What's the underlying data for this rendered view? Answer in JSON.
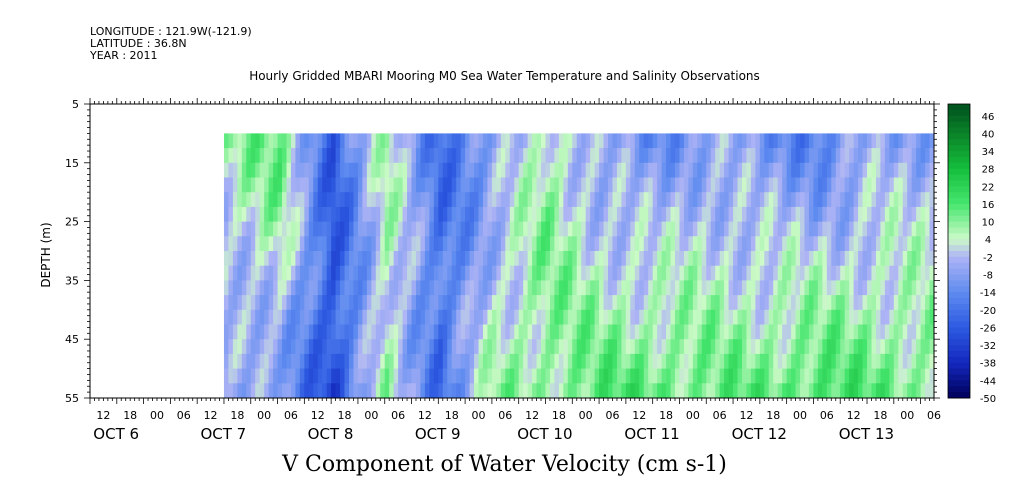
{
  "header": {
    "longitude": "LONGITUDE : 121.9W(-121.9)",
    "latitude": "LATITUDE : 36.8N",
    "year": "YEAR : 2011"
  },
  "chart_data": {
    "type": "heatmap",
    "title": "Hourly Gridded MBARI Mooring M0 Sea Water Temperature and Salinity Observations",
    "xlabel": "V Component of Water Velocity (cm s-1)",
    "ylabel": "DEPTH (m)",
    "ylim": [
      5,
      55
    ],
    "y_inverted": true,
    "y_ticks": [
      5,
      15,
      25,
      35,
      45,
      55
    ],
    "data_depth_range": [
      10,
      55
    ],
    "data_time_start_hours": 30,
    "x_range_hours": [
      0,
      189
    ],
    "x_hour_labels": [
      "12",
      "18",
      "00",
      "06",
      "12",
      "18",
      "00",
      "06",
      "12",
      "18",
      "00",
      "06",
      "12",
      "18",
      "00",
      "06",
      "12",
      "18",
      "00",
      "06",
      "12",
      "18",
      "00",
      "06",
      "12",
      "18",
      "00",
      "06",
      "12",
      "18",
      "00",
      "06"
    ],
    "x_day_labels": [
      "OCT  6",
      "OCT  7",
      "OCT  8",
      "OCT  9",
      "OCT 10",
      "OCT 11",
      "OCT 12",
      "OCT 13"
    ],
    "colorbar": {
      "min": -50,
      "max": 50,
      "labels": [
        "46",
        "40",
        "34",
        "28",
        "22",
        "16",
        "10",
        "4",
        "-2",
        "-8",
        "-14",
        "-20",
        "-26",
        "-32",
        "-38",
        "-44",
        "-50"
      ]
    },
    "field_estimate": {
      "description": "Mostly negative velocities (blue) near surface; positive (green) bands near bottom, especially Oct 10-13",
      "columns": [
        {
          "hour": 30,
          "v_surface": 6,
          "v_bottom": -10
        },
        {
          "hour": 42,
          "v_surface": 14,
          "v_bottom": -8
        },
        {
          "hour": 54,
          "v_surface": -24,
          "v_bottom": -30
        },
        {
          "hour": 66,
          "v_surface": 6,
          "v_bottom": 6
        },
        {
          "hour": 78,
          "v_surface": -20,
          "v_bottom": -20
        },
        {
          "hour": 90,
          "v_surface": -10,
          "v_bottom": 8
        },
        {
          "hour": 102,
          "v_surface": 8,
          "v_bottom": 10
        },
        {
          "hour": 114,
          "v_surface": -8,
          "v_bottom": 14
        },
        {
          "hour": 126,
          "v_surface": -14,
          "v_bottom": 16
        },
        {
          "hour": 138,
          "v_surface": -6,
          "v_bottom": 12
        },
        {
          "hour": 150,
          "v_surface": -12,
          "v_bottom": 14
        },
        {
          "hour": 162,
          "v_surface": -16,
          "v_bottom": 18
        },
        {
          "hour": 174,
          "v_surface": -8,
          "v_bottom": 14
        },
        {
          "hour": 186,
          "v_surface": -6,
          "v_bottom": 12
        }
      ]
    }
  }
}
